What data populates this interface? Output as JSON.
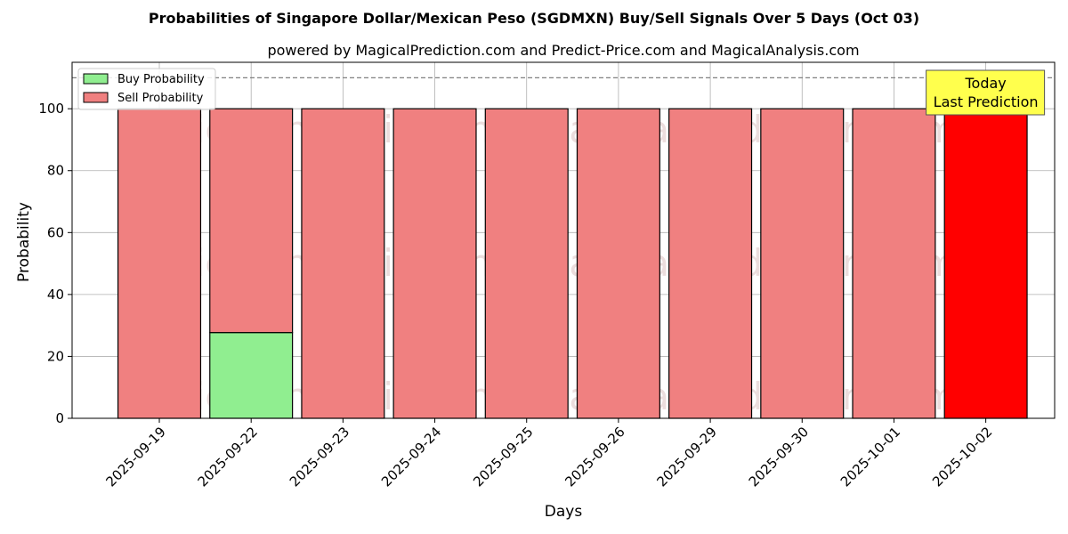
{
  "chart_data": {
    "type": "bar",
    "title": "Probabilities of Singapore Dollar/Mexican Peso (SGDMXN) Buy/Sell Signals Over 5 Days (Oct 03)",
    "subtitle": "powered by MagicalPrediction.com and Predict-Price.com and MagicalAnalysis.com",
    "xlabel": "Days",
    "ylabel": "Probability",
    "ylim": [
      0,
      115
    ],
    "yticks": [
      0,
      20,
      40,
      60,
      80,
      100
    ],
    "grid": true,
    "stacked": true,
    "categories": [
      "2025-09-19",
      "2025-09-22",
      "2025-09-23",
      "2025-09-24",
      "2025-09-25",
      "2025-09-26",
      "2025-09-29",
      "2025-09-30",
      "2025-10-01",
      "2025-10-02"
    ],
    "series": [
      {
        "name": "Buy Probability",
        "color": "#90ee90",
        "values": [
          0,
          27.7,
          0,
          0,
          0,
          0,
          0,
          0,
          0,
          0
        ]
      },
      {
        "name": "Sell Probability",
        "color": "#f08080",
        "values": [
          100,
          72.3,
          100,
          100,
          100,
          100,
          100,
          100,
          100,
          100
        ]
      }
    ],
    "highlight": {
      "index": 9,
      "color": "#ff0000"
    },
    "reference_line": {
      "y": 110,
      "style": "dashed",
      "color": "#808080"
    },
    "annotation": {
      "lines": [
        "Today",
        "Last Prediction"
      ],
      "background": "#ffff4d"
    },
    "legend": {
      "position": "top-left"
    },
    "watermarks": [
      "MagicalAnalysis.com",
      "MagicalPrediction.com"
    ]
  }
}
